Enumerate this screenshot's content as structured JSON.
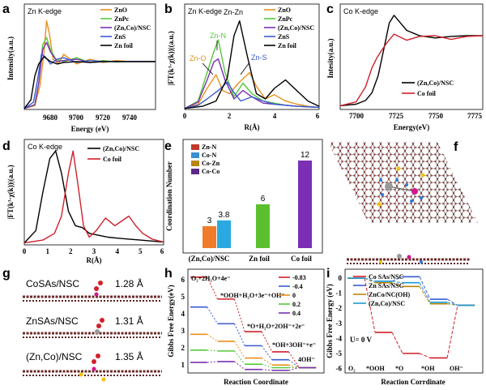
{
  "colors": {
    "black": "#000000",
    "orange": "#e8901e",
    "green": "#55c83a",
    "purple": "#7a2fb4",
    "blue": "#3a5bd0",
    "red": "#d0202a",
    "teal": "#1b9ad6",
    "gold": "#b8860b",
    "yellow": "#f2c200",
    "skyblue": "#4aa3df",
    "lime": "#7bc63a",
    "brick": "#c0392b"
  },
  "panels": {
    "a": {
      "letter": "a",
      "title": "Zn K-edge",
      "xlabel": "Energy (eV)",
      "ylabel": "Intensity(a.u.)",
      "xticks": [
        "9680",
        "9700",
        "9720",
        "9740"
      ],
      "legend": [
        "ZnO",
        "ZnPc",
        "(Zn,Co)/NSC",
        "ZnS",
        "Zn foil"
      ]
    },
    "b": {
      "letter": "b",
      "title": "Zn K-edge",
      "xlabel": "R(Å)",
      "ylabel": "|FT(k³·χ(k))|(a.u.)",
      "xticks": [
        "0",
        "2",
        "4",
        "6"
      ],
      "legend": [
        "ZnO",
        "ZnPc",
        "(Zn,Co)/NSC",
        "ZnS",
        "Zn foil"
      ],
      "annotations": [
        "Zn-Zn",
        "Zn-N",
        "Zn-O",
        "Zn-S"
      ]
    },
    "c": {
      "letter": "c",
      "title": "Co K-edge",
      "xlabel": "Energy(eV)",
      "ylabel": "Intesity(a.u.)",
      "xticks": [
        "7700",
        "7725",
        "7750",
        "7775"
      ],
      "legend": [
        "(Zn,Co)/NSC",
        "Co foil"
      ]
    },
    "d": {
      "letter": "d",
      "title": "Co K-edge",
      "xlabel": "R(Å)",
      "ylabel": "|FT(k³·χ(k))|(a.u.)",
      "xticks": [
        "0",
        "1",
        "2",
        "3",
        "4",
        "5",
        "6"
      ],
      "legend": [
        "(Zn,Co)/NSC",
        "Co foil"
      ]
    },
    "e": {
      "letter": "e",
      "ylabel": "Coordination Number",
      "legend": [
        "Zn-N",
        "Co-N",
        "Co-Zn",
        "Co-Co"
      ],
      "groups": [
        "(Zn,Co)/NSC",
        "Zn foil",
        "Co foil"
      ]
    },
    "f": {
      "letter": "f"
    },
    "g": {
      "letter": "g",
      "rows": [
        {
          "label": "CoSAs/NSC",
          "dist": "1.28 Å"
        },
        {
          "label": "ZnSAs/NSC",
          "dist": "1.31 Å"
        },
        {
          "label": "(Zn,Co)/NSC",
          "dist": "1.35 Å"
        }
      ]
    },
    "h": {
      "letter": "h",
      "xlabel": "Reaction Coordinate",
      "ylabel": "Gibbs Free Energy(eV)",
      "yticks": [
        "6",
        "5",
        "4",
        "3",
        "2",
        "1",
        "0"
      ],
      "legend": [
        "-0.83",
        "-0.4",
        "0",
        "0.2",
        "0.4"
      ],
      "steps": [
        "O₂+2H₂O+4e⁻",
        "*OOH+H₂O+3e⁻+OH⁻",
        "*O+H₂O+2OH⁻+2e⁻",
        "*OH+3OH⁻+e⁻",
        "4OH⁻"
      ]
    },
    "i": {
      "letter": "i",
      "xlabel": "Reaction Corrdinate",
      "ylabel": "Gibbs Free Energy (eV)",
      "yticks": [
        "0",
        "-1",
        "-2",
        "-3",
        "-4",
        "-5",
        "-6"
      ],
      "legend": [
        "Co SAs/NSC",
        "Zn SAs/NSC",
        "ZnCo/NC(OH)",
        "(Zn,Co)/NSC"
      ],
      "annotation": "U= 0 V",
      "steps": [
        "O₂",
        "*OOH",
        "*O",
        "*OH",
        "OH⁻"
      ]
    }
  },
  "chart_data": [
    {
      "panel": "a",
      "type": "line",
      "title": "Zn K-edge",
      "xlabel": "Energy (eV)",
      "ylabel": "Intensity(a.u.)",
      "xlim": [
        9650,
        9750
      ],
      "ylim": [
        0,
        2.2
      ],
      "series": [
        {
          "name": "ZnO",
          "x": [
            9650,
            9658,
            9662,
            9665,
            9667,
            9669,
            9672,
            9676,
            9680,
            9690,
            9700,
            9710,
            9720,
            9730,
            9740,
            9750
          ],
          "y": [
            0.02,
            0.08,
            0.5,
            1.2,
            1.85,
            1.6,
            1.05,
            0.95,
            1.15,
            0.95,
            1.05,
            0.98,
            1.02,
            1.0,
            1.0,
            1.0
          ]
        },
        {
          "name": "ZnPc",
          "x": [
            9650,
            9658,
            9661,
            9664,
            9667,
            9670,
            9674,
            9680,
            9690,
            9700,
            9710,
            9720,
            9730,
            9740,
            9750
          ],
          "y": [
            0.02,
            0.1,
            0.55,
            1.35,
            1.5,
            1.25,
            1.05,
            1.0,
            1.08,
            0.98,
            1.02,
            0.99,
            1.0,
            1.0,
            1.0
          ]
        },
        {
          "name": "(Zn,Co)/NSC",
          "x": [
            9650,
            9658,
            9661,
            9664,
            9667,
            9670,
            9675,
            9680,
            9690,
            9700,
            9710,
            9720,
            9730,
            9740,
            9750
          ],
          "y": [
            0.02,
            0.1,
            0.55,
            1.25,
            1.4,
            1.2,
            1.0,
            1.02,
            1.05,
            0.98,
            1.0,
            1.0,
            1.0,
            1.0,
            1.0
          ]
        },
        {
          "name": "ZnS",
          "x": [
            9650,
            9657,
            9660,
            9663,
            9666,
            9670,
            9675,
            9680,
            9690,
            9700,
            9710,
            9720,
            9730,
            9740,
            9750
          ],
          "y": [
            0.02,
            0.15,
            0.6,
            1.15,
            1.1,
            0.95,
            1.05,
            1.08,
            0.98,
            1.02,
            1.0,
            1.0,
            1.0,
            1.0,
            1.0
          ]
        },
        {
          "name": "Zn foil",
          "x": [
            9650,
            9655,
            9658,
            9661,
            9665,
            9670,
            9675,
            9680,
            9690,
            9700,
            9710,
            9720,
            9730,
            9740,
            9750
          ],
          "y": [
            0.02,
            0.2,
            0.7,
            0.95,
            1.1,
            1.0,
            0.95,
            0.98,
            1.0,
            0.98,
            1.0,
            1.0,
            1.0,
            1.0,
            1.0
          ]
        }
      ]
    },
    {
      "panel": "b",
      "type": "line",
      "title": "Zn K-edge",
      "xlabel": "R(Å)",
      "ylabel": "|FT(k³·χ(k))|(a.u.)",
      "xlim": [
        0,
        6
      ],
      "ylim": [
        0,
        10
      ],
      "series": [
        {
          "name": "ZnO",
          "x": [
            0,
            0.6,
            1.0,
            1.4,
            1.7,
            2.0,
            2.4,
            2.9,
            3.2,
            3.6,
            4.0,
            4.5,
            5.0,
            5.5,
            6.0
          ],
          "y": [
            0.1,
            0.5,
            2.0,
            3.3,
            1.8,
            1.5,
            2.5,
            3.5,
            2.2,
            1.0,
            1.4,
            0.8,
            0.5,
            0.3,
            0.2
          ]
        },
        {
          "name": "ZnPc",
          "x": [
            0,
            0.6,
            1.0,
            1.3,
            1.5,
            1.8,
            2.2,
            2.6,
            3.0,
            3.5,
            4.0,
            4.5,
            5.0,
            6.0
          ],
          "y": [
            0.1,
            0.8,
            3.5,
            5.5,
            6.6,
            3.5,
            1.2,
            2.5,
            1.5,
            0.8,
            0.6,
            0.4,
            0.3,
            0.2
          ]
        },
        {
          "name": "(Zn,Co)/NSC",
          "x": [
            0,
            0.6,
            1.0,
            1.3,
            1.5,
            1.8,
            2.2,
            2.6,
            3.0,
            3.5,
            4.0,
            5.0,
            6.0
          ],
          "y": [
            0.1,
            0.7,
            2.8,
            4.5,
            4.8,
            2.8,
            1.0,
            1.8,
            1.2,
            0.6,
            0.5,
            0.3,
            0.2
          ]
        },
        {
          "name": "ZnS",
          "x": [
            0,
            0.6,
            1.0,
            1.5,
            1.9,
            2.2,
            2.5,
            3.0,
            3.5,
            4.0,
            5.0,
            6.0
          ],
          "y": [
            0.1,
            0.4,
            1.0,
            1.8,
            2.6,
            1.6,
            0.8,
            1.2,
            0.8,
            0.5,
            0.3,
            0.2
          ]
        },
        {
          "name": "Zn foil",
          "x": [
            0,
            0.8,
            1.4,
            1.9,
            2.2,
            2.45,
            2.8,
            3.2,
            3.6,
            4.0,
            4.5,
            5.0,
            5.5,
            6.0
          ],
          "y": [
            0.1,
            0.3,
            0.8,
            3.0,
            7.0,
            8.4,
            5.0,
            1.5,
            1.0,
            2.0,
            2.8,
            1.8,
            0.8,
            0.3
          ]
        }
      ]
    },
    {
      "panel": "c",
      "type": "line",
      "title": "Co K-edge",
      "xlabel": "Energy(eV)",
      "ylabel": "Intesity(a.u.)",
      "xlim": [
        7690,
        7780
      ],
      "ylim": [
        0,
        1.4
      ],
      "series": [
        {
          "name": "(Zn,Co)/NSC",
          "x": [
            7690,
            7700,
            7706,
            7710,
            7714,
            7718,
            7721,
            7724,
            7728,
            7732,
            7740,
            7750,
            7760,
            7770,
            7780
          ],
          "y": [
            0.05,
            0.07,
            0.12,
            0.22,
            0.45,
            0.85,
            1.15,
            1.25,
            1.15,
            1.05,
            0.98,
            0.95,
            0.97,
            0.98,
            0.98
          ]
        },
        {
          "name": "Co foil",
          "x": [
            7690,
            7700,
            7706,
            7710,
            7713,
            7716,
            7720,
            7724,
            7728,
            7732,
            7740,
            7750,
            7760,
            7770,
            7780
          ],
          "y": [
            0.05,
            0.1,
            0.3,
            0.55,
            0.68,
            0.78,
            0.9,
            1.0,
            0.96,
            0.92,
            0.97,
            0.98,
            0.93,
            0.97,
            0.98
          ]
        }
      ]
    },
    {
      "panel": "d",
      "type": "line",
      "title": "Co K-edge",
      "xlabel": "R(Å)",
      "ylabel": "|FT(k³·χ(k))|(a.u.)",
      "xlim": [
        0,
        6
      ],
      "ylim": [
        0,
        1.1
      ],
      "series": [
        {
          "name": "(Zn,Co)/NSC",
          "x": [
            0,
            0.5,
            0.8,
            1.1,
            1.35,
            1.6,
            1.9,
            2.2,
            2.5,
            2.8,
            3.2,
            3.6,
            4.0,
            4.5,
            5.0,
            5.5,
            6.0
          ],
          "y": [
            0.02,
            0.15,
            0.55,
            0.9,
            0.98,
            0.75,
            0.35,
            0.2,
            0.18,
            0.12,
            0.1,
            0.08,
            0.07,
            0.06,
            0.05,
            0.04,
            0.03
          ]
        },
        {
          "name": "Co foil",
          "x": [
            0,
            0.8,
            1.3,
            1.6,
            1.9,
            2.1,
            2.3,
            2.55,
            2.8,
            3.1,
            3.5,
            3.9,
            4.2,
            4.5,
            4.8,
            5.1,
            5.5,
            6.0
          ],
          "y": [
            0.02,
            0.05,
            0.12,
            0.3,
            0.75,
            0.98,
            0.65,
            0.2,
            0.08,
            0.15,
            0.28,
            0.2,
            0.25,
            0.3,
            0.2,
            0.12,
            0.06,
            0.03
          ]
        }
      ]
    },
    {
      "panel": "e",
      "type": "bar",
      "ylabel": "Coordination Number",
      "ylim": [
        0,
        14
      ],
      "categories": [
        "(Zn,Co)/NSC",
        "Zn foil",
        "Co foil"
      ],
      "bars": [
        {
          "group": "(Zn,Co)/NSC",
          "name": "Zn-N",
          "value": 3,
          "label": "3"
        },
        {
          "group": "(Zn,Co)/NSC",
          "name": "Co-N",
          "value": 3.8,
          "label": "3.8"
        },
        {
          "group": "Zn foil",
          "name": "Zn-Zn",
          "value": 6,
          "label": "6"
        },
        {
          "group": "Co foil",
          "name": "Co-Co",
          "value": 12,
          "label": "12"
        }
      ]
    },
    {
      "panel": "h",
      "type": "line",
      "xlabel": "Reaction Coordinate",
      "ylabel": "Gibbs Free Energy(eV)",
      "ylim": [
        -0.3,
        5.6
      ],
      "series": [
        {
          "name": "-0.83",
          "values": [
            5.15,
            3.9,
            2.05,
            0.9,
            0.0
          ]
        },
        {
          "name": "-0.4",
          "values": [
            3.45,
            2.5,
            1.25,
            0.45,
            0.0
          ]
        },
        {
          "name": "0",
          "values": [
            1.9,
            1.5,
            0.55,
            0.15,
            0.0
          ]
        },
        {
          "name": "0.2",
          "values": [
            1.0,
            0.95,
            0.2,
            0.0,
            0.0
          ]
        },
        {
          "name": "0.4",
          "values": [
            0.3,
            0.35,
            -0.1,
            -0.15,
            0.0
          ]
        }
      ]
    },
    {
      "panel": "i",
      "type": "line",
      "xlabel": "Reaction Corrdinate",
      "ylabel": "Gibbs Free Energy (eV)",
      "ylim": [
        -6.3,
        0.6
      ],
      "series": [
        {
          "name": "Co SAs/NSC",
          "values": [
            0,
            -3.6,
            -5.0,
            -5.3,
            -1.8
          ]
        },
        {
          "name": "Zn SAs/NSC",
          "values": [
            0,
            -0.2,
            0.1,
            -1.4,
            -1.8
          ]
        },
        {
          "name": "ZnCo/NC(OH)",
          "values": [
            0,
            -0.3,
            -0.55,
            -1.7,
            -1.8
          ]
        },
        {
          "name": "(Zn,Co)/NSC",
          "values": [
            0,
            -0.2,
            -0.3,
            -1.6,
            -1.8
          ]
        }
      ]
    }
  ]
}
